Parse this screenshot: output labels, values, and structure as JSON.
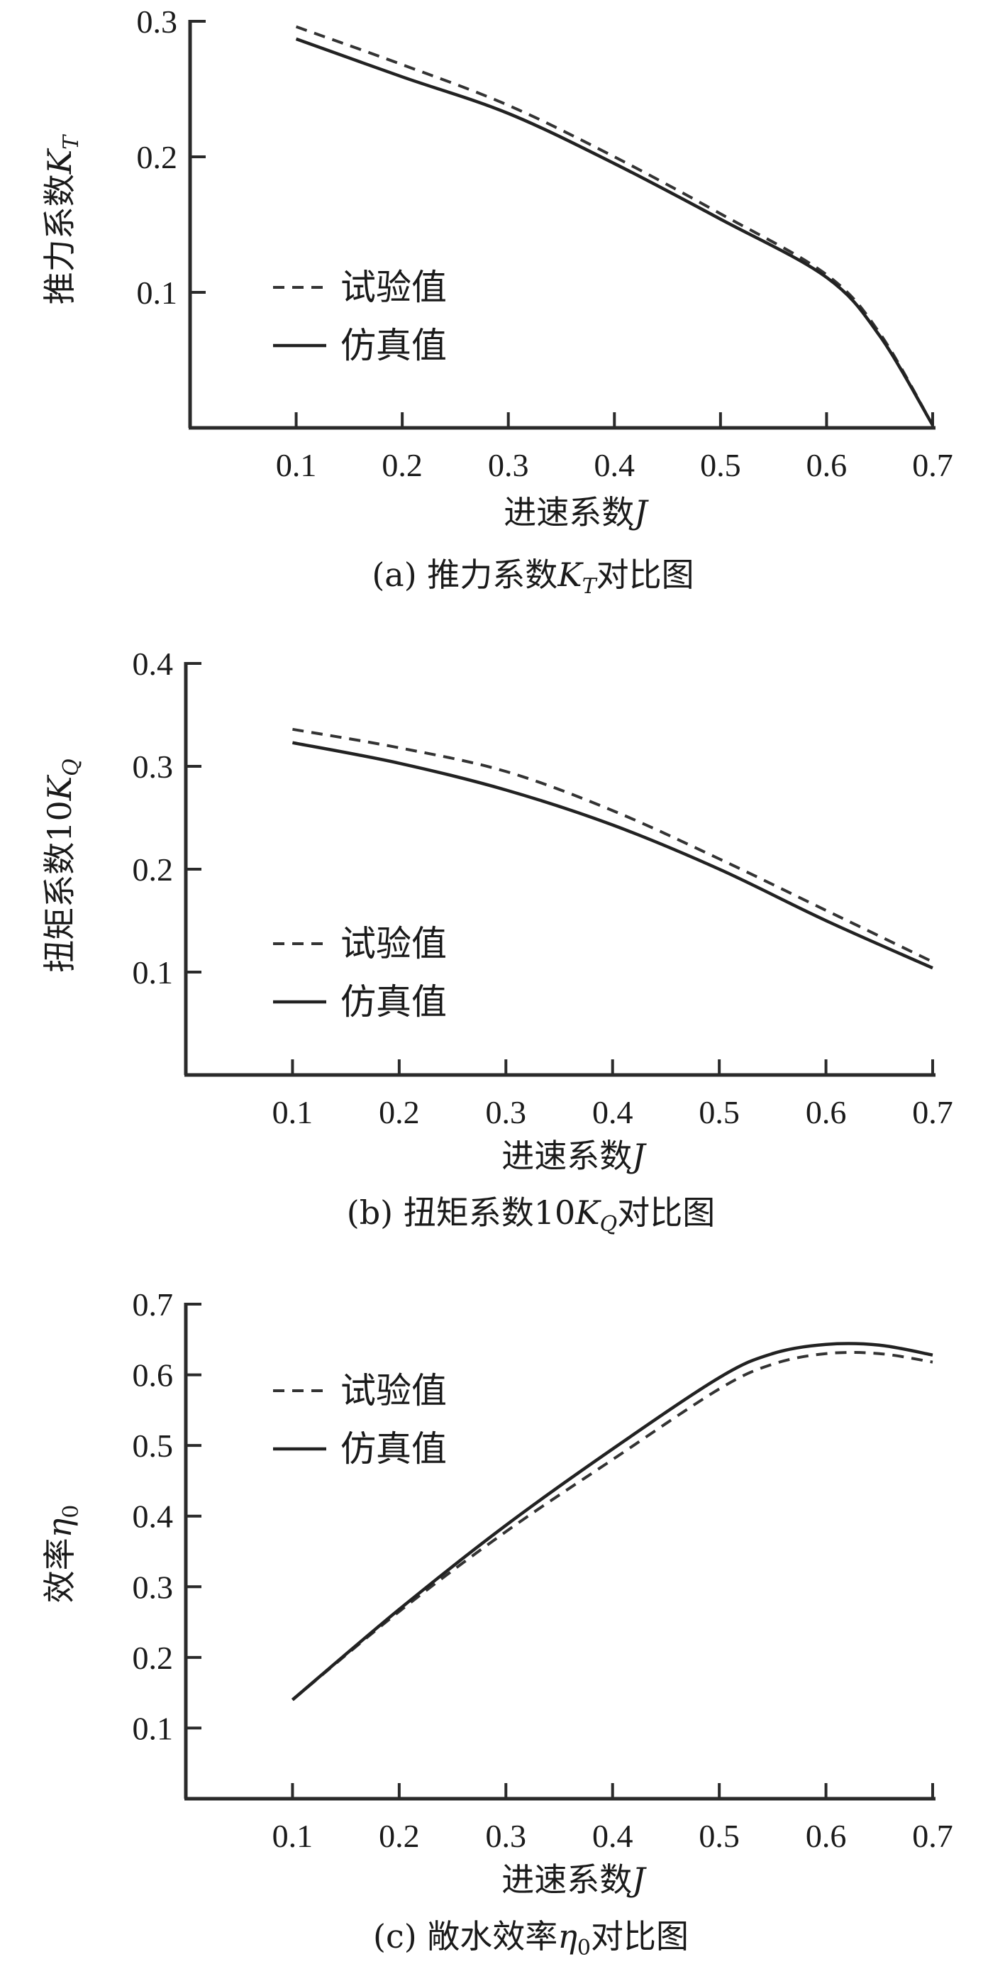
{
  "legend": {
    "experiment": "试验值",
    "simulation": "仿真值"
  },
  "colors": {
    "line": "#222222",
    "axis": "#2a2a2a",
    "background": "#ffffff"
  },
  "chart_data": [
    {
      "id": "a",
      "type": "line",
      "title_prefix": "(a) 推力系数",
      "title_symbol": "K",
      "title_sub": "T",
      "title_suffix": "对比图",
      "xlabel_prefix": "进速系数",
      "xlabel_symbol": "J",
      "ylabel_prefix": "推力系数",
      "ylabel_symbol": "K",
      "ylabel_sub": "T",
      "xlim": [
        0,
        0.7
      ],
      "ylim": [
        0,
        0.3
      ],
      "xticks": [
        "0.1",
        "0.2",
        "0.3",
        "0.4",
        "0.5",
        "0.6",
        "0.7"
      ],
      "yticks": [
        "0.1",
        "0.2",
        "0.3"
      ],
      "series": [
        {
          "name": "试验值",
          "style": "dashed",
          "x": [
            0.1,
            0.2,
            0.3,
            0.4,
            0.5,
            0.6,
            0.65,
            0.7
          ],
          "y": [
            0.296,
            0.268,
            0.238,
            0.2,
            0.158,
            0.113,
            0.07,
            0.002
          ]
        },
        {
          "name": "仿真值",
          "style": "solid",
          "x": [
            0.1,
            0.2,
            0.3,
            0.4,
            0.5,
            0.6,
            0.65,
            0.7
          ],
          "y": [
            0.287,
            0.259,
            0.232,
            0.195,
            0.154,
            0.111,
            0.068,
            0.002
          ]
        }
      ]
    },
    {
      "id": "b",
      "type": "line",
      "title_prefix": "(b) 扭矩系数10",
      "title_symbol": "K",
      "title_sub": "Q",
      "title_suffix": "对比图",
      "xlabel_prefix": "进速系数",
      "xlabel_symbol": "J",
      "ylabel_prefix": "扭矩系数10",
      "ylabel_symbol": "K",
      "ylabel_sub": "Q",
      "xlim": [
        0,
        0.7
      ],
      "ylim": [
        0,
        0.4
      ],
      "xticks": [
        "0.1",
        "0.2",
        "0.3",
        "0.4",
        "0.5",
        "0.6",
        "0.7"
      ],
      "yticks": [
        "0.1",
        "0.2",
        "0.3",
        "0.4"
      ],
      "series": [
        {
          "name": "试验值",
          "style": "dashed",
          "x": [
            0.1,
            0.2,
            0.3,
            0.4,
            0.5,
            0.6,
            0.7
          ],
          "y": [
            0.336,
            0.318,
            0.295,
            0.257,
            0.21,
            0.16,
            0.11
          ]
        },
        {
          "name": "仿真值",
          "style": "solid",
          "x": [
            0.1,
            0.2,
            0.3,
            0.4,
            0.5,
            0.6,
            0.7
          ],
          "y": [
            0.323,
            0.303,
            0.277,
            0.243,
            0.2,
            0.15,
            0.104
          ]
        }
      ]
    },
    {
      "id": "c",
      "type": "line",
      "title_prefix": "(c) 敞水效率",
      "title_symbol": "η",
      "title_sub": "0",
      "title_suffix": "对比图",
      "xlabel_prefix": "进速系数",
      "xlabel_symbol": "J",
      "ylabel_prefix": "效率",
      "ylabel_symbol": "η",
      "ylabel_sub": "0",
      "xlim": [
        0,
        0.7
      ],
      "ylim": [
        0,
        0.7
      ],
      "xticks": [
        "0.1",
        "0.2",
        "0.3",
        "0.4",
        "0.5",
        "0.6",
        "0.7"
      ],
      "yticks": [
        "0.1",
        "0.2",
        "0.3",
        "0.4",
        "0.5",
        "0.6",
        "0.7"
      ],
      "series": [
        {
          "name": "试验值",
          "style": "dashed",
          "x": [
            0.1,
            0.2,
            0.3,
            0.4,
            0.5,
            0.55,
            0.6,
            0.65,
            0.7
          ],
          "y": [
            0.14,
            0.265,
            0.378,
            0.48,
            0.58,
            0.615,
            0.63,
            0.63,
            0.618
          ]
        },
        {
          "name": "仿真值",
          "style": "solid",
          "x": [
            0.1,
            0.2,
            0.3,
            0.4,
            0.5,
            0.55,
            0.6,
            0.65,
            0.7
          ],
          "y": [
            0.14,
            0.268,
            0.387,
            0.495,
            0.596,
            0.63,
            0.643,
            0.642,
            0.628
          ]
        }
      ]
    }
  ]
}
